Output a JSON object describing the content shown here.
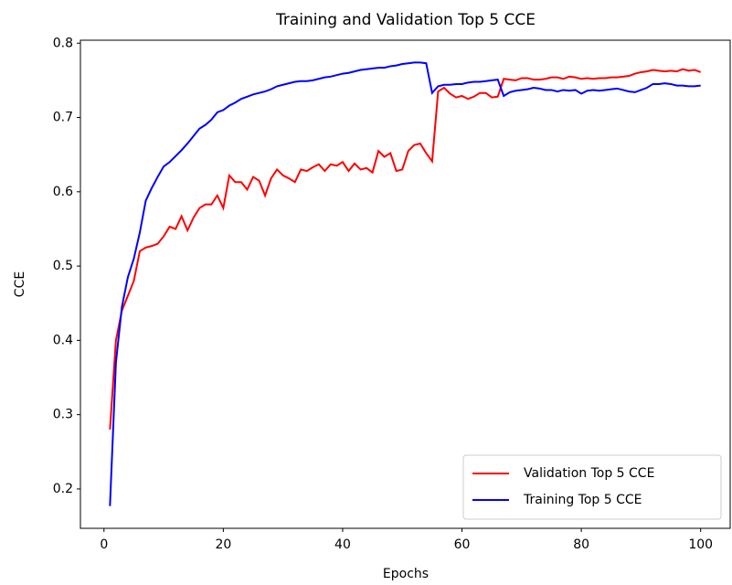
{
  "chart_data": {
    "type": "line",
    "title": "Training and Validation Top 5 CCE",
    "xlabel": "Epochs",
    "ylabel": "CCE",
    "x": [
      1,
      2,
      3,
      4,
      5,
      6,
      7,
      8,
      9,
      10,
      11,
      12,
      13,
      14,
      15,
      16,
      17,
      18,
      19,
      20,
      21,
      22,
      23,
      24,
      25,
      26,
      27,
      28,
      29,
      30,
      31,
      32,
      33,
      34,
      35,
      36,
      37,
      38,
      39,
      40,
      41,
      42,
      43,
      44,
      45,
      46,
      47,
      48,
      49,
      50,
      51,
      52,
      53,
      54,
      55,
      56,
      57,
      58,
      59,
      60,
      61,
      62,
      63,
      64,
      65,
      66,
      67,
      68,
      69,
      70,
      71,
      72,
      73,
      74,
      75,
      76,
      77,
      78,
      79,
      80,
      81,
      82,
      83,
      84,
      85,
      86,
      87,
      88,
      89,
      90,
      91,
      92,
      93,
      94,
      95,
      96,
      97,
      98,
      99,
      100
    ],
    "series": [
      {
        "name": "Validation Top 5 CCE",
        "color": "#ff0000",
        "values": [
          0.28,
          0.4,
          0.44,
          0.46,
          0.48,
          0.52,
          0.525,
          0.527,
          0.53,
          0.54,
          0.553,
          0.55,
          0.567,
          0.548,
          0.565,
          0.578,
          0.583,
          0.583,
          0.595,
          0.578,
          0.622,
          0.613,
          0.613,
          0.603,
          0.62,
          0.615,
          0.595,
          0.618,
          0.63,
          0.622,
          0.618,
          0.613,
          0.63,
          0.628,
          0.633,
          0.637,
          0.628,
          0.637,
          0.635,
          0.64,
          0.628,
          0.638,
          0.63,
          0.632,
          0.626,
          0.655,
          0.647,
          0.652,
          0.628,
          0.63,
          0.655,
          0.663,
          0.665,
          0.652,
          0.641,
          0.735,
          0.74,
          0.732,
          0.727,
          0.729,
          0.725,
          0.728,
          0.733,
          0.733,
          0.727,
          0.728,
          0.752,
          0.751,
          0.75,
          0.753,
          0.753,
          0.751,
          0.751,
          0.752,
          0.754,
          0.754,
          0.752,
          0.755,
          0.754,
          0.752,
          0.753,
          0.752,
          0.753,
          0.753,
          0.754,
          0.754,
          0.755,
          0.756,
          0.759,
          0.761,
          0.762,
          0.764,
          0.763,
          0.762,
          0.763,
          0.762,
          0.765,
          0.763,
          0.764,
          0.761
        ]
      },
      {
        "name": "Training Top 5 CCE",
        "color": "#0000ff",
        "values": [
          0.177,
          0.37,
          0.445,
          0.485,
          0.51,
          0.545,
          0.588,
          0.605,
          0.62,
          0.634,
          0.64,
          0.648,
          0.656,
          0.665,
          0.675,
          0.685,
          0.69,
          0.697,
          0.707,
          0.71,
          0.716,
          0.72,
          0.725,
          0.728,
          0.731,
          0.733,
          0.735,
          0.738,
          0.742,
          0.744,
          0.746,
          0.748,
          0.749,
          0.749,
          0.75,
          0.752,
          0.754,
          0.755,
          0.757,
          0.759,
          0.76,
          0.762,
          0.764,
          0.765,
          0.766,
          0.767,
          0.767,
          0.769,
          0.77,
          0.772,
          0.773,
          0.774,
          0.774,
          0.773,
          0.733,
          0.742,
          0.744,
          0.744,
          0.745,
          0.745,
          0.747,
          0.748,
          0.748,
          0.749,
          0.75,
          0.751,
          0.729,
          0.734,
          0.736,
          0.737,
          0.738,
          0.74,
          0.739,
          0.737,
          0.737,
          0.735,
          0.737,
          0.736,
          0.737,
          0.732,
          0.736,
          0.737,
          0.736,
          0.737,
          0.738,
          0.739,
          0.737,
          0.735,
          0.734,
          0.737,
          0.74,
          0.745,
          0.745,
          0.746,
          0.745,
          0.743,
          0.743,
          0.742,
          0.742,
          0.743
        ]
      }
    ],
    "xlim": [
      -3.95,
      104.95
    ],
    "xticks": [
      0,
      20,
      40,
      60,
      80,
      100
    ],
    "ylim": [
      0.147,
      0.804
    ],
    "yticks": [
      0.2,
      0.3,
      0.4,
      0.5,
      0.6,
      0.7,
      0.8
    ],
    "grid": false,
    "legend": "lower right"
  }
}
